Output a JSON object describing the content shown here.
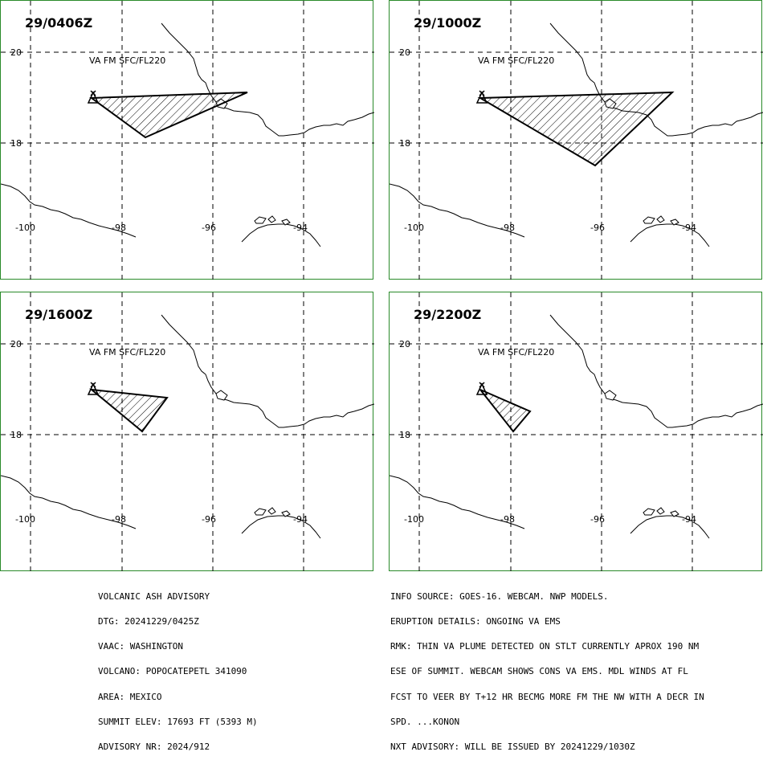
{
  "panels": [
    {
      "time": "29/0406Z",
      "layer": "VA FM SFC/FL220",
      "lat_labels": [
        "20",
        "18"
      ],
      "lon_labels": [
        "-100",
        "-98",
        "-96",
        "-94"
      ]
    },
    {
      "time": "29/1000Z",
      "layer": "VA FM SFC/FL220",
      "lat_labels": [
        "20",
        "18"
      ],
      "lon_labels": [
        "-100",
        "-98",
        "-96",
        "-94"
      ]
    },
    {
      "time": "29/1600Z",
      "layer": "VA FM SFC/FL220",
      "lat_labels": [
        "20",
        "18"
      ],
      "lon_labels": [
        "-100",
        "-98",
        "-96",
        "-94"
      ]
    },
    {
      "time": "29/2200Z",
      "layer": "VA FM SFC/FL220",
      "lat_labels": [
        "20",
        "18"
      ],
      "lon_labels": [
        "-100",
        "-98",
        "-96",
        "-94"
      ]
    }
  ],
  "advisory_left": [
    "VOLCANIC ASH ADVISORY",
    "DTG: 20241229/0425Z",
    "VAAC: WASHINGTON",
    "VOLCANO: POPOCATEPETL 341090",
    "AREA: MEXICO",
    "SUMMIT ELEV: 17693 FT (5393 M)",
    "ADVISORY NR: 2024/912"
  ],
  "advisory_right": [
    "INFO SOURCE: GOES-16. WEBCAM. NWP MODELS.",
    "ERUPTION DETAILS: ONGOING VA EMS",
    "RMK: THIN VA PLUME DETECTED ON STLT CURRENTLY APROX 190 NM",
    "ESE OF SUMMIT. WEBCAM SHOWS CONS VA EMS. MDL WINDS AT FL",
    "FCST TO VEER BY T+12 HR BECMG MORE FM THE NW WITH A DECR IN",
    "SPD. ...KONON",
    "NXT ADVISORY: WILL BE ISSUED BY 20241229/1030Z"
  ],
  "colors": {
    "border": "#2a8a2a",
    "lines": "#000000",
    "background": "#ffffff"
  }
}
